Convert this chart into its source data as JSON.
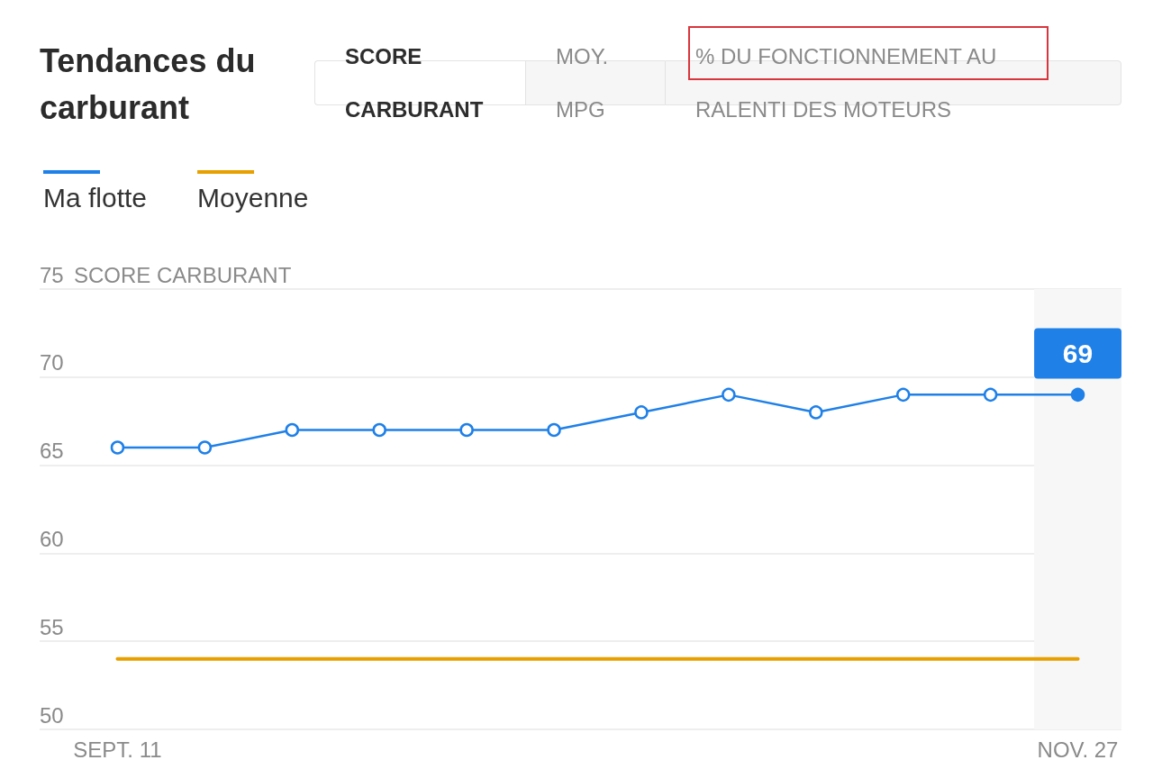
{
  "chart_data": {
    "type": "line",
    "title": "Tendances du carburant",
    "ylabel": "SCORE CARBURANT",
    "annotations": [
      "SCORE CARBURANT",
      "MOY. MPG",
      "% DU FONCTIONNEMENT AU RALENTI DES MOTEURS"
    ],
    "categories": [
      "SEPT. 11",
      null,
      null,
      null,
      null,
      null,
      null,
      null,
      null,
      null,
      null,
      "NOV. 27"
    ],
    "series": [
      {
        "name": "Ma flotte",
        "color": "#1f80e8",
        "marker": "circle",
        "values": [
          66,
          66,
          67,
          67,
          67,
          67,
          68,
          69,
          68,
          69,
          69,
          69
        ],
        "value_labels": [
          null,
          null,
          null,
          null,
          null,
          null,
          null,
          null,
          null,
          null,
          null,
          "69"
        ]
      },
      {
        "name": "Moyenne",
        "color": "#e8a000",
        "marker": "none",
        "values": [
          54,
          54,
          54,
          54,
          54,
          54,
          54,
          54,
          54,
          54,
          54,
          54
        ]
      }
    ],
    "ylim": [
      50,
      75
    ],
    "yticks": [
      50,
      55,
      60,
      65,
      70,
      75
    ],
    "grid": "y",
    "legend": "top left",
    "bands": [
      {
        "axis": "x",
        "from": "NOV. 27",
        "to": "NOV. 27",
        "color": "#f7f7f7"
      }
    ]
  }
}
